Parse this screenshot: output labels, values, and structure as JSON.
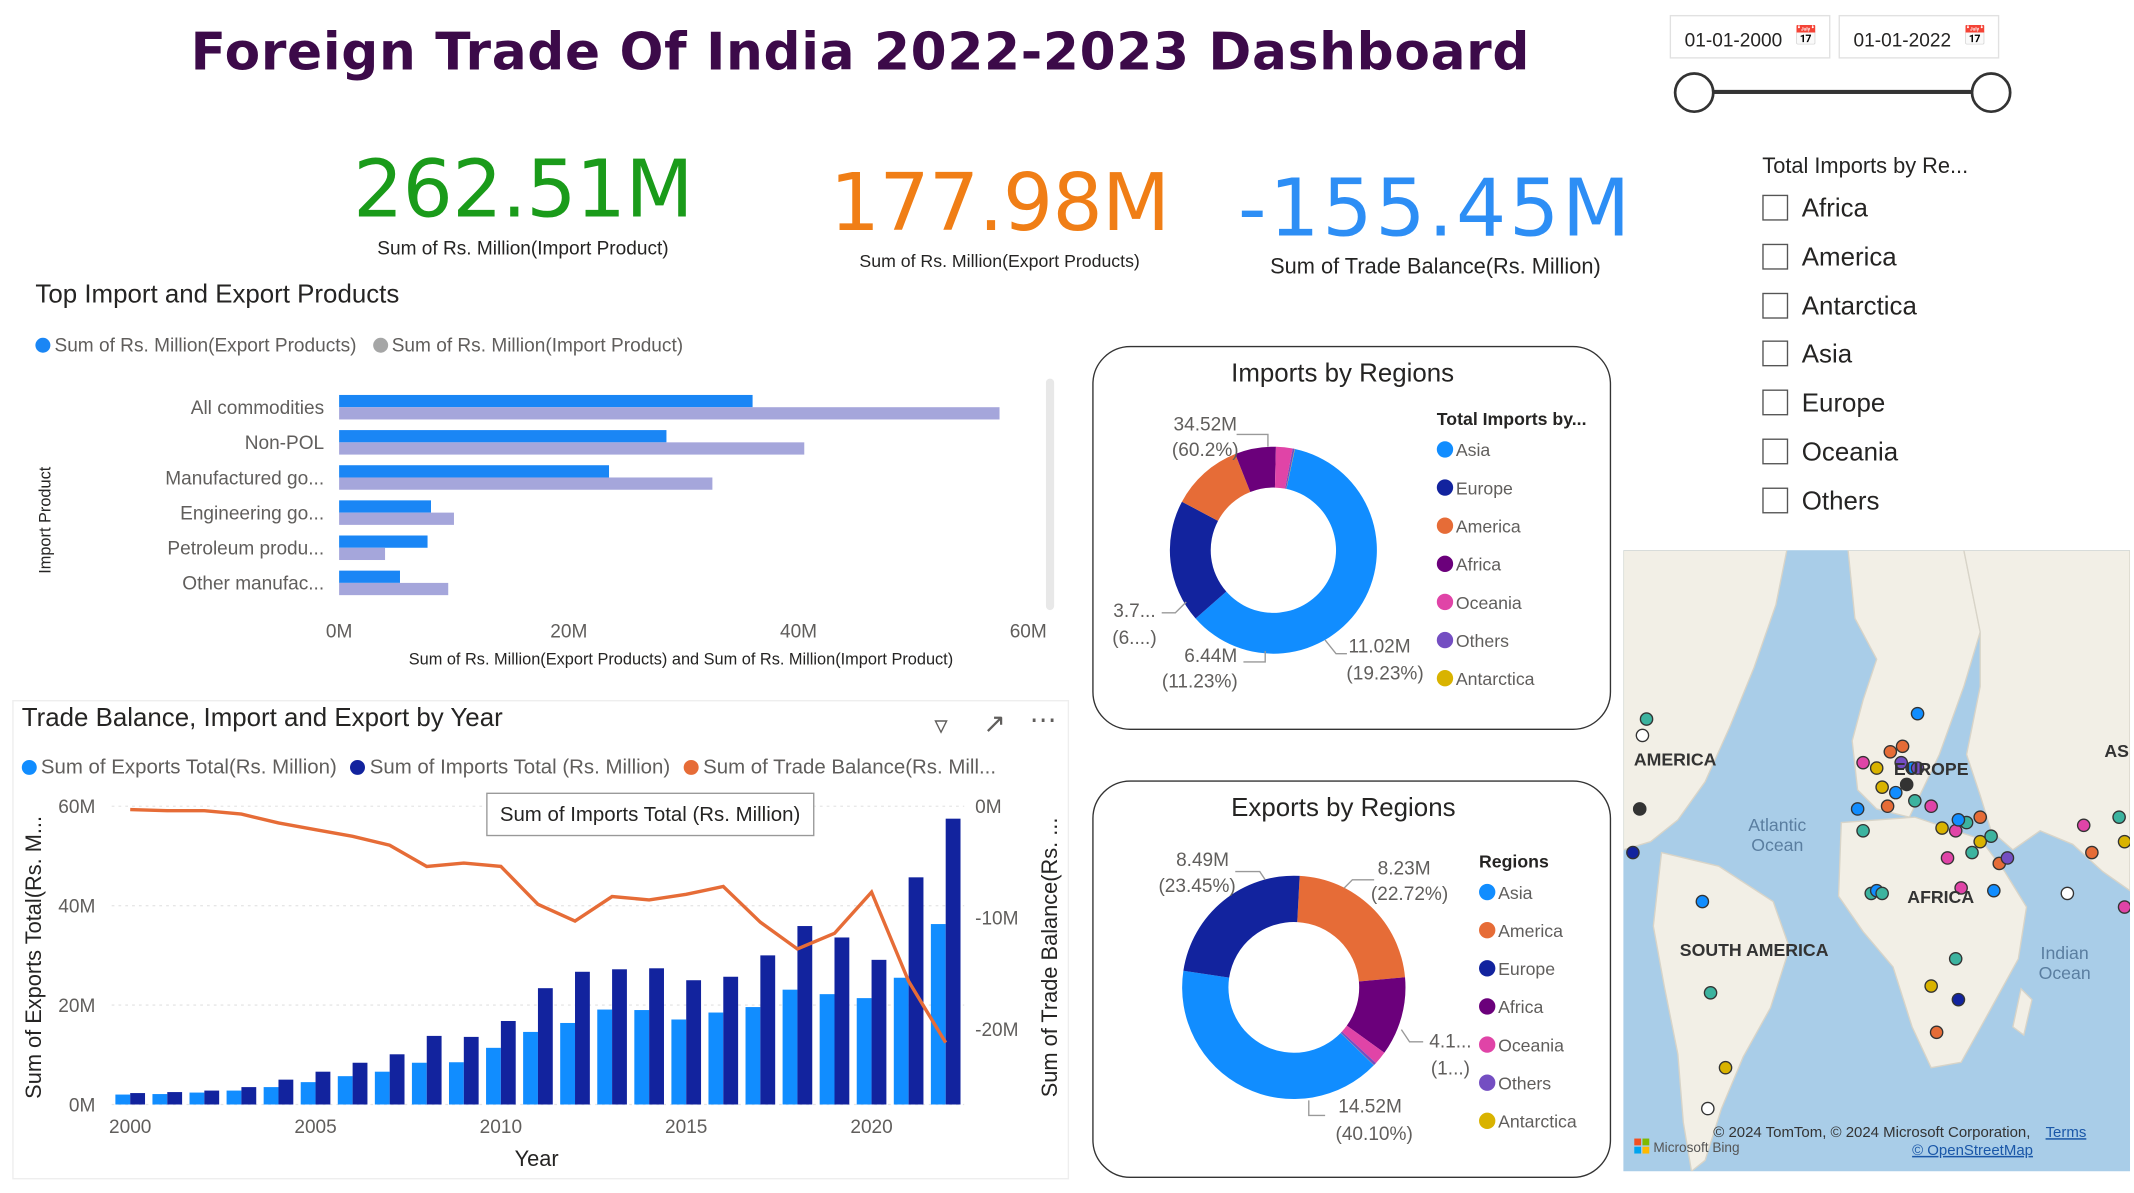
{
  "title": "Foreign Trade Of India 2022-2023 Dashboard",
  "date_filter": {
    "start": "01-01-2000",
    "end": "01-01-2022",
    "calendar_icon": "calendar-icon"
  },
  "kpis": [
    {
      "value": "262.51M",
      "label": "Sum of Rs. Million(Import Product)",
      "color": "#1a9b1a"
    },
    {
      "value": "177.98M",
      "label": "Sum of Rs. Million(Export Products)",
      "color": "#f07e16"
    },
    {
      "value": "-155.45M",
      "label": "Sum of Trade Balance(Rs. Million)",
      "color": "#2d8ef5"
    }
  ],
  "region_slicer": {
    "title": "Total Imports by Re...",
    "items": [
      "Africa",
      "America",
      "Antarctica",
      "Asia",
      "Europe",
      "Oceania",
      "Others"
    ]
  },
  "products_chart": {
    "title": "Top Import and Export Products",
    "legend": [
      "Sum of Rs. Million(Export Products)",
      "Sum of Rs. Million(Import Product)"
    ],
    "colors": {
      "export": "#1a86f5",
      "import": "#a5a6db"
    },
    "y_axis_label": "Import Product",
    "x_axis_label": "Sum of Rs. Million(Export Products) and Sum of Rs. Million(Import Product)"
  },
  "imports_regions": {
    "title": "Imports by Regions",
    "legend_title": "Total Imports by...",
    "legend": [
      "Asia",
      "Europe",
      "America",
      "Africa",
      "Oceania",
      "Others",
      "Antarctica"
    ],
    "labels": [
      {
        "value": "34.52M",
        "pct": "(60.2%)"
      },
      {
        "value": "11.02M",
        "pct": "(19.23%)"
      },
      {
        "value": "6.44M",
        "pct": "(11.23%)"
      },
      {
        "value": "3.7...",
        "pct": "(6....)"
      }
    ]
  },
  "exports_regions": {
    "title": "Exports by Regions",
    "legend_title": "Regions",
    "legend": [
      "Asia",
      "America",
      "Europe",
      "Africa",
      "Oceania",
      "Others",
      "Antarctica"
    ],
    "labels": [
      {
        "value": "8.49M",
        "pct": "(23.45%)"
      },
      {
        "value": "8.23M",
        "pct": "(22.72%)"
      },
      {
        "value": "4.1...",
        "pct": "(1...)"
      },
      {
        "value": "14.52M",
        "pct": "(40.10%)"
      }
    ]
  },
  "region_colors": {
    "Asia": "#118dff",
    "Europe": "#12239e",
    "America": "#e66c37",
    "Africa": "#6b007b",
    "Oceania": "#e044a7",
    "Others": "#744ec2",
    "Antarctica": "#d9b300"
  },
  "year_chart": {
    "title": "Trade Balance, Import and Export by Year",
    "legend": [
      "Sum of Exports Total(Rs. Million)",
      "Sum of Imports Total (Rs. Million)",
      "Sum of Trade Balance(Rs. Mill..."
    ],
    "y_left_label": "Sum of Exports Total(Rs. M...",
    "y_right_label": "Sum of Trade Balance(Rs. ...",
    "x_label": "Year",
    "tooltip": "Sum of Imports Total (Rs. Million)",
    "icons": [
      "filter-icon",
      "focus-mode-icon",
      "more-options-icon"
    ]
  },
  "map": {
    "labels": {
      "america": "AMERICA",
      "europe": "EUROPE",
      "asia": "ASI",
      "atlantic": "Atlantic\nOcean",
      "africa": "AFRICA",
      "south_america": "SOUTH AMERICA",
      "indian": "Indian\nOcean"
    },
    "copyright": "© 2024 TomTom, © 2024 Microsoft Corporation,",
    "terms": "Terms",
    "osm": "© OpenStreetMap",
    "bing": "Microsoft Bing"
  },
  "chart_data": [
    {
      "type": "bar",
      "title": "Top Import and Export Products",
      "categories": [
        "All commodities",
        "Non-POL",
        "Manufactured go...",
        "Engineering go...",
        "Petroleum produ...",
        "Other manufac..."
      ],
      "series": [
        {
          "name": "Sum of Rs. Million(Export Products)",
          "values": [
            36,
            28.5,
            23.5,
            8,
            7.7,
            5.3
          ]
        },
        {
          "name": "Sum of Rs. Million(Import Product)",
          "values": [
            57.5,
            40.5,
            32.5,
            10,
            4,
            9.5
          ]
        }
      ],
      "xlim": [
        0,
        60
      ],
      "xticks": [
        "0M",
        "20M",
        "40M",
        "60M"
      ],
      "xlabel": "Sum of Rs. Million(Export Products) and Sum of Rs. Million(Import Product)",
      "ylabel": "Import Product"
    },
    {
      "type": "pie",
      "title": "Imports by Regions",
      "categories": [
        "Asia",
        "Europe",
        "America",
        "Africa",
        "Oceania",
        "Others",
        "Antarctica"
      ],
      "values": [
        60.2,
        19.23,
        11.23,
        6.4,
        2.6,
        0.3,
        0.04
      ]
    },
    {
      "type": "pie",
      "title": "Exports by Regions",
      "categories": [
        "Asia",
        "America",
        "Europe",
        "Africa",
        "Oceania",
        "Others",
        "Antarctica"
      ],
      "values": [
        40.1,
        23.45,
        22.72,
        11.4,
        1.9,
        0.4,
        0.03
      ]
    },
    {
      "type": "bar",
      "title": "Trade Balance, Import and Export by Year",
      "categories": [
        2000,
        2001,
        2002,
        2003,
        2004,
        2005,
        2006,
        2007,
        2008,
        2009,
        2010,
        2011,
        2012,
        2013,
        2014,
        2015,
        2016,
        2017,
        2018,
        2019,
        2020,
        2021,
        2022
      ],
      "series": [
        {
          "name": "Sum of Exports Total(Rs. Million)",
          "values": [
            2.0,
            2.1,
            2.4,
            2.8,
            3.5,
            4.5,
            5.7,
            6.6,
            8.4,
            8.5,
            11.4,
            14.6,
            16.4,
            19.1,
            19.0,
            17.1,
            18.5,
            19.6,
            23.1,
            22.2,
            21.4,
            25.5,
            36.3
          ]
        },
        {
          "name": "Sum of Imports Total (Rs. Million)",
          "values": [
            2.3,
            2.5,
            2.8,
            3.5,
            5.0,
            6.6,
            8.4,
            10.1,
            13.8,
            13.6,
            16.8,
            23.4,
            26.7,
            27.2,
            27.4,
            25.0,
            25.7,
            30.0,
            35.9,
            33.6,
            29.1,
            45.7,
            57.5
          ]
        },
        {
          "name": "Sum of Trade Balance(Rs. Mill...",
          "type": "line",
          "values": [
            -0.3,
            -0.4,
            -0.4,
            -0.7,
            -1.5,
            -2.1,
            -2.7,
            -3.5,
            -5.4,
            -5.1,
            -5.4,
            -8.8,
            -10.3,
            -8.1,
            -8.4,
            -7.9,
            -7.2,
            -10.4,
            -12.8,
            -11.4,
            -7.7,
            -15.7,
            -21.2
          ]
        }
      ],
      "y_left": {
        "lim": [
          0,
          60
        ],
        "ticks": [
          "0M",
          "20M",
          "40M",
          "60M"
        ]
      },
      "y_right": {
        "lim": [
          -25,
          0
        ],
        "ticks": [
          "0M",
          "-10M",
          "-20M"
        ]
      },
      "xticks": [
        "2000",
        "2005",
        "2010",
        "2015",
        "2020"
      ],
      "xlabel": "Year",
      "ylabel": "Sum of Exports Total(Rs. M..."
    }
  ]
}
